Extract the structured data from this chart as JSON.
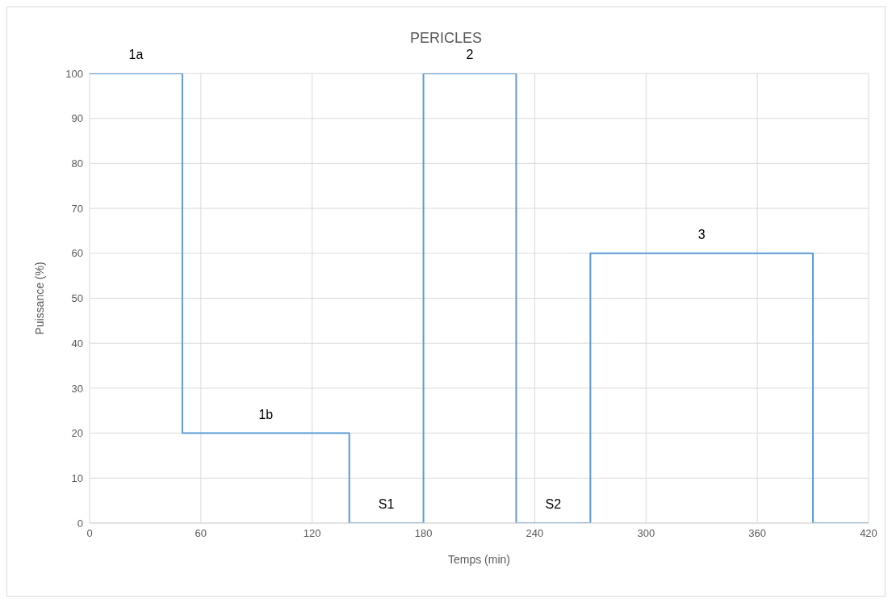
{
  "chart_data": {
    "type": "step",
    "title": "PERICLES",
    "xlabel": "Temps (min)",
    "ylabel": "Puissance (%)",
    "x": [
      0,
      50,
      140,
      180,
      230,
      270,
      390,
      420
    ],
    "series": [
      {
        "color": "#5b9bd5",
        "values": [
          100,
          20,
          0,
          100,
          0,
          60,
          0,
          0
        ]
      }
    ],
    "xlim": [
      0,
      420
    ],
    "xticks": [
      0,
      60,
      120,
      180,
      240,
      300,
      360,
      420
    ],
    "ylim": [
      0,
      100
    ],
    "yticks": [
      0,
      10,
      20,
      30,
      40,
      50,
      60,
      70,
      80,
      90,
      100
    ],
    "grid": true,
    "legend": false,
    "marker": "none",
    "line_style": "solid",
    "annotations": [
      {
        "text": "1a",
        "x": 25,
        "y": 100
      },
      {
        "text": "1b",
        "x": 95,
        "y": 20
      },
      {
        "text": "S1",
        "x": 160,
        "y": 0
      },
      {
        "text": "2",
        "x": 205,
        "y": 100
      },
      {
        "text": "S2",
        "x": 250,
        "y": 0
      },
      {
        "text": "3",
        "x": 330,
        "y": 60
      }
    ]
  }
}
